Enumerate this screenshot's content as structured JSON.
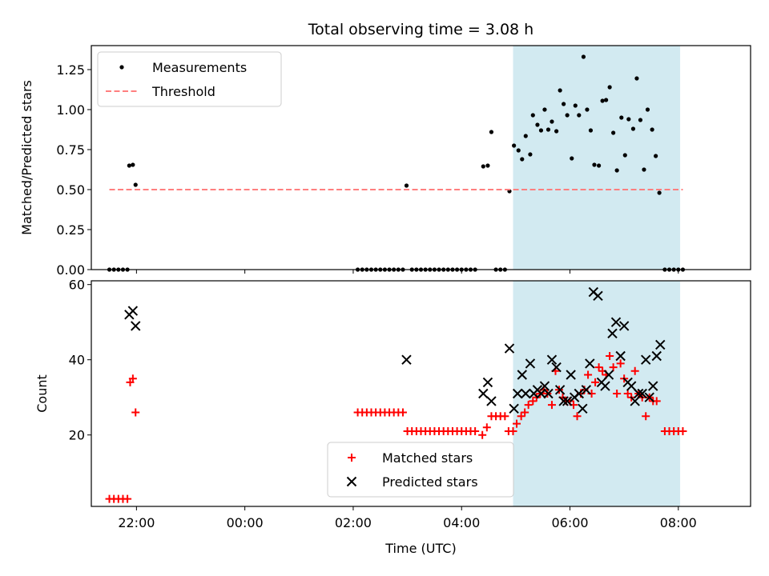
{
  "chart_data": [
    {
      "type": "scatter",
      "title": "Total observing time = 3.08 h",
      "xlabel": "",
      "ylabel": "Matched/Predicted stars",
      "xlim": [
        "21:10",
        "09:20"
      ],
      "ylim": [
        0,
        1.4
      ],
      "y_ticks": [
        "0.00",
        "0.25",
        "0.50",
        "0.75",
        "1.00",
        "1.25"
      ],
      "legend_position": "upper-left",
      "shaded_region": {
        "x": [
          "04:57",
          "08:02"
        ],
        "color": "#add8e6"
      },
      "series": [
        {
          "name": "Measurements",
          "marker": "dot",
          "color": "#000000",
          "points": [
            [
              "21:30",
              0
            ],
            [
              "21:35",
              0
            ],
            [
              "21:40",
              0
            ],
            [
              "21:45",
              0
            ],
            [
              "21:50",
              0
            ],
            [
              "21:52",
              0.65
            ],
            [
              "21:56",
              0.655
            ],
            [
              "21:59",
              0.53
            ],
            [
              "02:05",
              0
            ],
            [
              "02:10",
              0
            ],
            [
              "02:15",
              0
            ],
            [
              "02:20",
              0
            ],
            [
              "02:25",
              0
            ],
            [
              "02:30",
              0
            ],
            [
              "02:35",
              0
            ],
            [
              "02:40",
              0
            ],
            [
              "02:45",
              0
            ],
            [
              "02:50",
              0
            ],
            [
              "02:55",
              0
            ],
            [
              "02:59",
              0.525
            ],
            [
              "03:05",
              0
            ],
            [
              "03:10",
              0
            ],
            [
              "03:15",
              0
            ],
            [
              "03:20",
              0
            ],
            [
              "03:25",
              0
            ],
            [
              "03:30",
              0
            ],
            [
              "03:35",
              0
            ],
            [
              "03:40",
              0
            ],
            [
              "03:45",
              0
            ],
            [
              "03:50",
              0
            ],
            [
              "03:55",
              0
            ],
            [
              "04:00",
              0
            ],
            [
              "04:05",
              0
            ],
            [
              "04:10",
              0
            ],
            [
              "04:15",
              0
            ],
            [
              "04:24",
              0.645
            ],
            [
              "04:29",
              0.65
            ],
            [
              "04:33",
              0.86
            ],
            [
              "04:38",
              0
            ],
            [
              "04:43",
              0
            ],
            [
              "04:48",
              0
            ],
            [
              "04:53",
              0.49
            ],
            [
              "04:58",
              0.775
            ],
            [
              "05:03",
              0.745
            ],
            [
              "05:07",
              0.69
            ],
            [
              "05:11",
              0.835
            ],
            [
              "05:16",
              0.72
            ],
            [
              "05:19",
              0.965
            ],
            [
              "05:24",
              0.905
            ],
            [
              "05:28",
              0.87
            ],
            [
              "05:32",
              1.0
            ],
            [
              "05:36",
              0.875
            ],
            [
              "05:40",
              0.925
            ],
            [
              "05:45",
              0.865
            ],
            [
              "05:49",
              1.12
            ],
            [
              "05:53",
              1.035
            ],
            [
              "05:57",
              0.965
            ],
            [
              "06:02",
              0.695
            ],
            [
              "06:06",
              1.025
            ],
            [
              "06:10",
              0.965
            ],
            [
              "06:15",
              1.33
            ],
            [
              "06:19",
              1.0
            ],
            [
              "06:23",
              0.87
            ],
            [
              "06:27",
              0.655
            ],
            [
              "06:32",
              0.65
            ],
            [
              "06:36",
              1.055
            ],
            [
              "06:40",
              1.06
            ],
            [
              "06:44",
              1.14
            ],
            [
              "06:48",
              0.855
            ],
            [
              "06:52",
              0.62
            ],
            [
              "06:57",
              0.95
            ],
            [
              "07:01",
              0.715
            ],
            [
              "07:05",
              0.94
            ],
            [
              "07:10",
              0.88
            ],
            [
              "07:14",
              1.195
            ],
            [
              "07:18",
              0.935
            ],
            [
              "07:22",
              0.625
            ],
            [
              "07:26",
              1.0
            ],
            [
              "07:31",
              0.875
            ],
            [
              "07:35",
              0.71
            ],
            [
              "07:39",
              0.48
            ],
            [
              "07:45",
              0
            ],
            [
              "07:50",
              0
            ],
            [
              "07:55",
              0
            ],
            [
              "08:00",
              0
            ],
            [
              "08:05",
              0
            ]
          ]
        },
        {
          "name": "Threshold",
          "style": "dashed",
          "color": "#ff7f7f",
          "points": [
            [
              "21:30",
              0.5
            ],
            [
              "08:05",
              0.5
            ]
          ]
        }
      ]
    },
    {
      "type": "scatter",
      "title": "",
      "xlabel": "Time (UTC)",
      "ylabel": "Count",
      "xlim": [
        "21:10",
        "09:20"
      ],
      "ylim": [
        1,
        61
      ],
      "x_ticks": [
        "22:00",
        "00:00",
        "02:00",
        "04:00",
        "06:00",
        "08:00"
      ],
      "y_ticks": [
        "20",
        "40",
        "60"
      ],
      "legend_position": "lower-center",
      "shaded_region": {
        "x": [
          "04:57",
          "08:02"
        ],
        "color": "#add8e6"
      },
      "series": [
        {
          "name": "Matched stars",
          "marker": "plus",
          "color": "#ff0000",
          "points": [
            [
              "21:30",
              3
            ],
            [
              "21:35",
              3
            ],
            [
              "21:40",
              3
            ],
            [
              "21:45",
              3
            ],
            [
              "21:50",
              3
            ],
            [
              "21:53",
              34
            ],
            [
              "21:56",
              35
            ],
            [
              "21:59",
              26
            ],
            [
              "02:05",
              26
            ],
            [
              "02:10",
              26
            ],
            [
              "02:15",
              26
            ],
            [
              "02:20",
              26
            ],
            [
              "02:25",
              26
            ],
            [
              "02:30",
              26
            ],
            [
              "02:35",
              26
            ],
            [
              "02:40",
              26
            ],
            [
              "02:45",
              26
            ],
            [
              "02:50",
              26
            ],
            [
              "02:55",
              26
            ],
            [
              "03:00",
              21
            ],
            [
              "03:05",
              21
            ],
            [
              "03:10",
              21
            ],
            [
              "03:15",
              21
            ],
            [
              "03:20",
              21
            ],
            [
              "03:25",
              21
            ],
            [
              "03:30",
              21
            ],
            [
              "03:35",
              21
            ],
            [
              "03:40",
              21
            ],
            [
              "03:45",
              21
            ],
            [
              "03:50",
              21
            ],
            [
              "03:55",
              21
            ],
            [
              "04:00",
              21
            ],
            [
              "04:05",
              21
            ],
            [
              "04:10",
              21
            ],
            [
              "04:15",
              21
            ],
            [
              "04:23",
              20
            ],
            [
              "04:28",
              22
            ],
            [
              "04:33",
              25
            ],
            [
              "04:38",
              25
            ],
            [
              "04:43",
              25
            ],
            [
              "04:48",
              25
            ],
            [
              "04:52",
              21
            ],
            [
              "04:57",
              21
            ],
            [
              "05:01",
              23
            ],
            [
              "05:06",
              25
            ],
            [
              "05:10",
              26
            ],
            [
              "05:14",
              28
            ],
            [
              "05:19",
              29
            ],
            [
              "05:23",
              30
            ],
            [
              "05:27",
              31
            ],
            [
              "05:31",
              32
            ],
            [
              "05:35",
              31
            ],
            [
              "05:40",
              28
            ],
            [
              "05:44",
              37
            ],
            [
              "05:48",
              32
            ],
            [
              "05:52",
              30
            ],
            [
              "05:56",
              29
            ],
            [
              "06:00",
              29
            ],
            [
              "06:04",
              28
            ],
            [
              "06:08",
              25
            ],
            [
              "06:12",
              31
            ],
            [
              "06:16",
              32
            ],
            [
              "06:20",
              36
            ],
            [
              "06:24",
              31
            ],
            [
              "06:28",
              34
            ],
            [
              "06:32",
              38
            ],
            [
              "06:36",
              37
            ],
            [
              "06:40",
              36
            ],
            [
              "06:44",
              41
            ],
            [
              "06:48",
              38
            ],
            [
              "06:52",
              31
            ],
            [
              "06:56",
              39
            ],
            [
              "07:00",
              35
            ],
            [
              "07:04",
              31
            ],
            [
              "07:08",
              30
            ],
            [
              "07:12",
              37
            ],
            [
              "07:16",
              31
            ],
            [
              "07:20",
              30
            ],
            [
              "07:24",
              25
            ],
            [
              "07:28",
              30
            ],
            [
              "07:32",
              29
            ],
            [
              "07:36",
              29
            ],
            [
              "07:45",
              21
            ],
            [
              "07:50",
              21
            ],
            [
              "07:55",
              21
            ],
            [
              "08:00",
              21
            ],
            [
              "08:05",
              21
            ]
          ]
        },
        {
          "name": "Predicted stars",
          "marker": "x",
          "color": "#000000",
          "points": [
            [
              "21:52",
              52
            ],
            [
              "21:56",
              53
            ],
            [
              "21:59",
              49
            ],
            [
              "02:59",
              40
            ],
            [
              "04:24",
              31
            ],
            [
              "04:29",
              34
            ],
            [
              "04:33",
              29
            ],
            [
              "04:53",
              43
            ],
            [
              "04:58",
              27
            ],
            [
              "05:02",
              31
            ],
            [
              "05:07",
              36
            ],
            [
              "05:11",
              31
            ],
            [
              "05:16",
              39
            ],
            [
              "05:20",
              31
            ],
            [
              "05:24",
              32
            ],
            [
              "05:28",
              31
            ],
            [
              "05:32",
              33
            ],
            [
              "05:36",
              31
            ],
            [
              "05:40",
              40
            ],
            [
              "05:45",
              38
            ],
            [
              "05:49",
              32
            ],
            [
              "05:53",
              29
            ],
            [
              "05:57",
              29
            ],
            [
              "06:01",
              36
            ],
            [
              "06:05",
              30
            ],
            [
              "06:10",
              31
            ],
            [
              "06:14",
              27
            ],
            [
              "06:18",
              32
            ],
            [
              "06:22",
              39
            ],
            [
              "06:26",
              58
            ],
            [
              "06:31",
              57
            ],
            [
              "06:35",
              34
            ],
            [
              "06:39",
              33
            ],
            [
              "06:43",
              36
            ],
            [
              "06:47",
              47
            ],
            [
              "06:51",
              50
            ],
            [
              "06:56",
              41
            ],
            [
              "07:00",
              49
            ],
            [
              "07:04",
              34
            ],
            [
              "07:08",
              33
            ],
            [
              "07:12",
              29
            ],
            [
              "07:16",
              31
            ],
            [
              "07:20",
              31
            ],
            [
              "07:24",
              40
            ],
            [
              "07:28",
              30
            ],
            [
              "07:32",
              33
            ],
            [
              "07:36",
              41
            ],
            [
              "07:40",
              44
            ]
          ]
        }
      ]
    }
  ]
}
